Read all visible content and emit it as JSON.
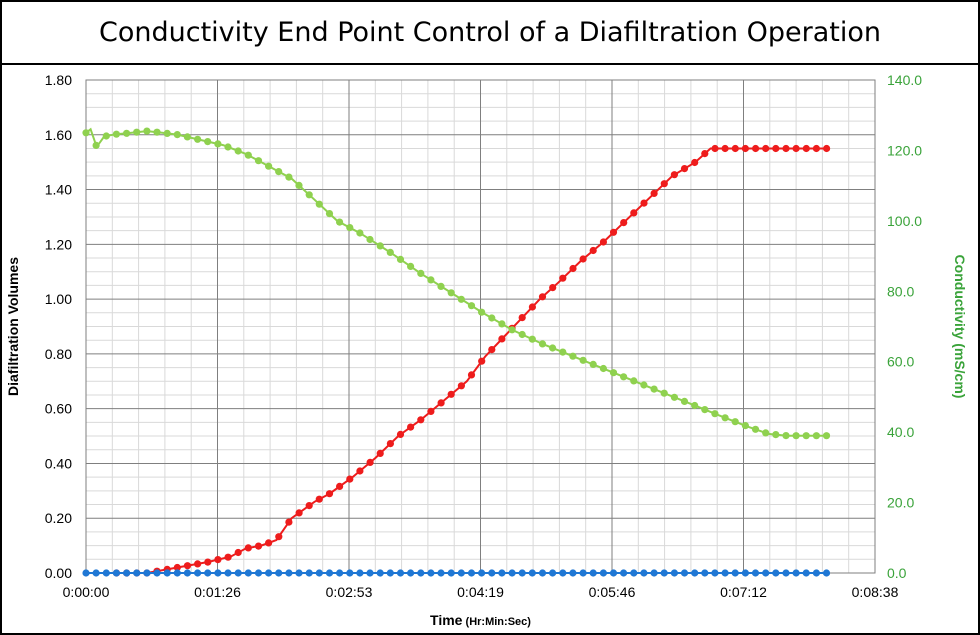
{
  "title": "Conductivity End Point Control of a Diafiltration Operation",
  "colors": {
    "diafiltration": "#ee1c1c",
    "conductivity": "#8fd14f",
    "baseline": "#1f77d4",
    "right_axis_text": "#3aa33a"
  },
  "chart_data": {
    "type": "line",
    "title": "Conductivity End Point Control of a Diafiltration Operation",
    "xlabel": "Time",
    "xlabel_units": "(Hr:Min:Sec)",
    "ylabel": "Diafiltration Volumes",
    "y2label": "Conductivity (mS/cm)",
    "x_unit": "seconds",
    "xlim": [
      0,
      518
    ],
    "ylim": [
      0,
      1.8
    ],
    "y2lim": [
      0,
      140
    ],
    "x_tick_labels": [
      "0:00:00",
      "0:01:26",
      "0:02:53",
      "0:04:19",
      "0:05:46",
      "0:07:12",
      "0:08:38"
    ],
    "y_tick_labels": [
      "0.00",
      "0.20",
      "0.40",
      "0.60",
      "0.80",
      "1.00",
      "1.20",
      "1.40",
      "1.60",
      "1.80"
    ],
    "y2_tick_labels": [
      "0.0",
      "20.0",
      "40.0",
      "60.0",
      "80.0",
      "100.0",
      "120.0",
      "140.0"
    ],
    "grid": true,
    "series": [
      {
        "axis": "left",
        "color": "#ee1c1c",
        "points": [
          [
            20,
            0.0
          ],
          [
            40,
            0.0
          ],
          [
            60,
            0.02
          ],
          [
            80,
            0.04
          ],
          [
            95,
            0.06
          ],
          [
            105,
            0.09
          ],
          [
            115,
            0.1
          ],
          [
            125,
            0.12
          ],
          [
            135,
            0.2
          ],
          [
            150,
            0.26
          ],
          [
            160,
            0.29
          ],
          [
            175,
            0.35
          ],
          [
            190,
            0.42
          ],
          [
            205,
            0.5
          ],
          [
            220,
            0.56
          ],
          [
            235,
            0.63
          ],
          [
            250,
            0.7
          ],
          [
            262,
            0.79
          ],
          [
            274,
            0.86
          ],
          [
            286,
            0.93
          ],
          [
            298,
            1.0
          ],
          [
            310,
            1.06
          ],
          [
            325,
            1.14
          ],
          [
            340,
            1.21
          ],
          [
            355,
            1.29
          ],
          [
            370,
            1.37
          ],
          [
            385,
            1.45
          ],
          [
            400,
            1.5
          ],
          [
            410,
            1.55
          ],
          [
            425,
            1.55
          ],
          [
            440,
            1.55
          ],
          [
            455,
            1.55
          ],
          [
            488,
            1.55
          ]
        ]
      },
      {
        "axis": "right",
        "color": "#8fd14f",
        "points": [
          [
            0,
            125
          ],
          [
            3,
            126
          ],
          [
            7,
            121
          ],
          [
            12,
            124
          ],
          [
            20,
            124.6
          ],
          [
            30,
            125
          ],
          [
            40,
            125.5
          ],
          [
            50,
            125
          ],
          [
            60,
            124.5
          ],
          [
            75,
            123
          ],
          [
            90,
            121.5
          ],
          [
            105,
            119
          ],
          [
            120,
            115.5
          ],
          [
            135,
            112
          ],
          [
            150,
            106
          ],
          [
            165,
            100
          ],
          [
            180,
            96.5
          ],
          [
            200,
            91
          ],
          [
            220,
            85
          ],
          [
            240,
            79.5
          ],
          [
            260,
            74
          ],
          [
            280,
            69
          ],
          [
            300,
            65
          ],
          [
            320,
            61.5
          ],
          [
            340,
            58
          ],
          [
            360,
            54.5
          ],
          [
            380,
            51
          ],
          [
            400,
            47.5
          ],
          [
            420,
            44
          ],
          [
            435,
            41.5
          ],
          [
            448,
            39.5
          ],
          [
            460,
            39
          ],
          [
            488,
            39
          ]
        ]
      },
      {
        "axis": "left",
        "color": "#1f77d4",
        "points": [
          [
            0,
            0
          ],
          [
            488,
            0
          ]
        ]
      }
    ]
  }
}
